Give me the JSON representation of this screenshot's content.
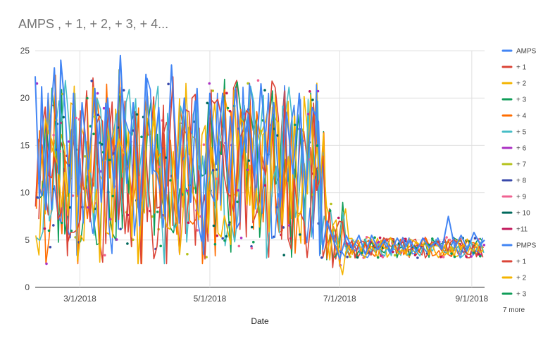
{
  "chart_data": {
    "type": "line",
    "title": "AMPS , + 1, + 2, + 3, + 4...",
    "xlabel": "Date",
    "ylabel": "",
    "xlim": [
      "2018-02-08",
      "2018-09-07"
    ],
    "ylim": [
      0,
      25
    ],
    "y_ticks": [
      "0",
      "5",
      "10",
      "15",
      "20",
      "25"
    ],
    "x_ticks": [
      {
        "label": "3/1/2018",
        "date": "2018-03-01"
      },
      {
        "label": "5/1/2018",
        "date": "2018-05-01"
      },
      {
        "label": "7/1/2018",
        "date": "2018-07-01"
      },
      {
        "label": "9/1/2018",
        "date": "2018-09-01"
      }
    ],
    "grid": true,
    "legend_position": "right",
    "legend_more": "7 more",
    "series": [
      {
        "name": "AMPS",
        "color": "#4285f4",
        "style": "line",
        "phase": 0
      },
      {
        "name": "+ 1",
        "color": "#db4437",
        "style": "line",
        "phase": 1
      },
      {
        "name": "+ 2",
        "color": "#f4b400",
        "style": "line",
        "phase": 2
      },
      {
        "name": "+ 3",
        "color": "#0f9d58",
        "style": "line",
        "phase": 3
      },
      {
        "name": "+ 4",
        "color": "#ff6d00",
        "style": "line",
        "phase": 4
      },
      {
        "name": "+ 5",
        "color": "#46bdc6",
        "style": "line",
        "phase": 5
      },
      {
        "name": "+ 6",
        "color": "#ab30c4",
        "style": "points",
        "phase": 6
      },
      {
        "name": "+ 7",
        "color": "#b5c21b",
        "style": "points",
        "phase": 7
      },
      {
        "name": "+ 8",
        "color": "#3949ab",
        "style": "points",
        "phase": 8
      },
      {
        "name": "+ 9",
        "color": "#f06292",
        "style": "points",
        "phase": 9
      },
      {
        "name": "+ 10",
        "color": "#00695c",
        "style": "points",
        "phase": 10
      },
      {
        "name": "+11",
        "color": "#c2185b",
        "style": "points",
        "phase": 11
      },
      {
        "name": "PMPS",
        "color": "#4285f4",
        "style": "line",
        "phase": 12
      },
      {
        "name": "+ 1",
        "color": "#db4437",
        "style": "line",
        "phase": 13
      },
      {
        "name": "+ 2",
        "color": "#f4b400",
        "style": "line",
        "phase": 14
      },
      {
        "name": "+ 3",
        "color": "#0f9d58",
        "style": "points",
        "phase": 15
      }
    ],
    "amps_series": {
      "name": "AMPS",
      "points": [
        [
          "2018-02-08",
          22.3
        ],
        [
          "2018-02-10",
          9.4
        ],
        [
          "2018-02-11",
          21.2
        ],
        [
          "2018-02-13",
          8.2
        ],
        [
          "2018-02-15",
          17.0
        ],
        [
          "2018-02-17",
          23.2
        ],
        [
          "2018-02-19",
          12.0
        ],
        [
          "2018-02-20",
          24.0
        ],
        [
          "2018-02-22",
          19.0
        ],
        [
          "2018-02-24",
          10.0
        ],
        [
          "2018-02-26",
          20.5
        ],
        [
          "2018-02-28",
          9.8
        ],
        [
          "2018-03-02",
          19.5
        ],
        [
          "2018-03-05",
          12.5
        ],
        [
          "2018-03-08",
          21.0
        ],
        [
          "2018-03-11",
          9.0
        ],
        [
          "2018-03-14",
          20.0
        ],
        [
          "2018-03-17",
          10.5
        ],
        [
          "2018-03-20",
          24.5
        ],
        [
          "2018-03-23",
          11.0
        ],
        [
          "2018-03-26",
          19.5
        ],
        [
          "2018-03-29",
          6.5
        ],
        [
          "2018-04-01",
          22.5
        ],
        [
          "2018-04-04",
          12.0
        ],
        [
          "2018-04-07",
          19.0
        ],
        [
          "2018-04-10",
          7.5
        ],
        [
          "2018-04-13",
          23.5
        ],
        [
          "2018-04-16",
          11.5
        ],
        [
          "2018-04-19",
          20.0
        ],
        [
          "2018-04-22",
          9.0
        ],
        [
          "2018-04-25",
          21.0
        ],
        [
          "2018-04-28",
          3.5
        ],
        [
          "2018-05-01",
          20.5
        ],
        [
          "2018-05-04",
          13.0
        ],
        [
          "2018-05-07",
          20.5
        ],
        [
          "2018-05-10",
          10.0
        ],
        [
          "2018-05-13",
          21.0
        ],
        [
          "2018-05-16",
          14.0
        ],
        [
          "2018-05-19",
          18.0
        ],
        [
          "2018-05-22",
          11.5
        ],
        [
          "2018-05-25",
          21.5
        ],
        [
          "2018-05-28",
          13.0
        ],
        [
          "2018-05-31",
          19.5
        ],
        [
          "2018-06-03",
          8.5
        ],
        [
          "2018-06-06",
          18.5
        ],
        [
          "2018-06-09",
          12.0
        ],
        [
          "2018-06-12",
          20.5
        ],
        [
          "2018-06-15",
          10.0
        ],
        [
          "2018-06-18",
          19.0
        ],
        [
          "2018-06-21",
          17.5
        ],
        [
          "2018-06-23",
          4.0
        ],
        [
          "2018-06-25",
          7.0
        ],
        [
          "2018-06-28",
          5.0
        ],
        [
          "2018-07-01",
          3.0
        ],
        [
          "2018-07-04",
          5.5
        ],
        [
          "2018-07-07",
          4.0
        ],
        [
          "2018-07-10",
          5.5
        ],
        [
          "2018-07-13",
          3.5
        ],
        [
          "2018-07-16",
          5.5
        ],
        [
          "2018-07-19",
          4.0
        ],
        [
          "2018-07-22",
          5.0
        ],
        [
          "2018-07-25",
          3.8
        ],
        [
          "2018-07-28",
          5.2
        ],
        [
          "2018-07-31",
          4.0
        ],
        [
          "2018-08-03",
          5.0
        ],
        [
          "2018-08-06",
          3.8
        ],
        [
          "2018-08-09",
          5.2
        ],
        [
          "2018-08-12",
          4.2
        ],
        [
          "2018-08-15",
          4.8
        ],
        [
          "2018-08-18",
          4.0
        ],
        [
          "2018-08-21",
          7.5
        ],
        [
          "2018-08-24",
          4.2
        ],
        [
          "2018-08-27",
          5.5
        ],
        [
          "2018-08-30",
          4.0
        ],
        [
          "2018-09-02",
          5.8
        ],
        [
          "2018-09-05",
          4.5
        ],
        [
          "2018-09-07",
          5.0
        ]
      ]
    }
  }
}
